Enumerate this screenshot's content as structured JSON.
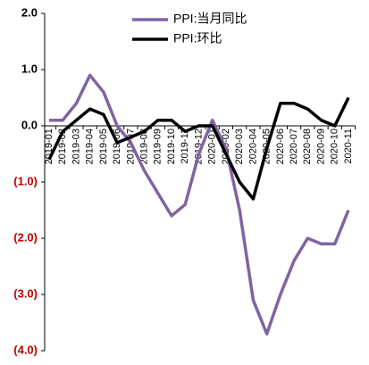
{
  "chart_data": {
    "type": "line",
    "categories": [
      "2019-01",
      "2019-02",
      "2019-03",
      "2019-04",
      "2019-05",
      "2019-06",
      "2019-07",
      "2019-08",
      "2019-09",
      "2019-10",
      "2019-11",
      "2019-12",
      "2020-01",
      "2020-02",
      "2020-03",
      "2020-04",
      "2020-05",
      "2020-06",
      "2020-07",
      "2020-08",
      "2020-09",
      "2020-10",
      "2020-11"
    ],
    "series": [
      {
        "name": "PPI:当月同比",
        "color": "#8064a2",
        "values": [
          0.1,
          0.1,
          0.4,
          0.9,
          0.6,
          0.0,
          -0.3,
          -0.8,
          -1.2,
          -1.6,
          -1.4,
          -0.5,
          0.1,
          -0.4,
          -1.5,
          -3.1,
          -3.7,
          -3.0,
          -2.4,
          -2.0,
          -2.1,
          -2.1,
          -1.5
        ]
      },
      {
        "name": "PPI:环比",
        "color": "#000000",
        "values": [
          -0.6,
          -0.1,
          0.1,
          0.3,
          0.2,
          -0.3,
          -0.2,
          -0.1,
          0.1,
          0.1,
          -0.1,
          0.0,
          0.0,
          -0.5,
          -1.0,
          -1.3,
          -0.4,
          0.4,
          0.4,
          0.3,
          0.1,
          0.0,
          0.5
        ]
      }
    ],
    "ylim": [
      -4,
      2
    ],
    "yticks": [
      {
        "value": 2,
        "label": "2.0"
      },
      {
        "value": 1,
        "label": "1.0"
      },
      {
        "value": 0,
        "label": "0.0"
      },
      {
        "value": -1,
        "label": "(1.0)"
      },
      {
        "value": -2,
        "label": "(2.0)"
      },
      {
        "value": -3,
        "label": "(3.0)"
      },
      {
        "value": -4,
        "label": "(4.0)"
      }
    ],
    "negative_tick_color": "#c00000",
    "legend": "top"
  }
}
